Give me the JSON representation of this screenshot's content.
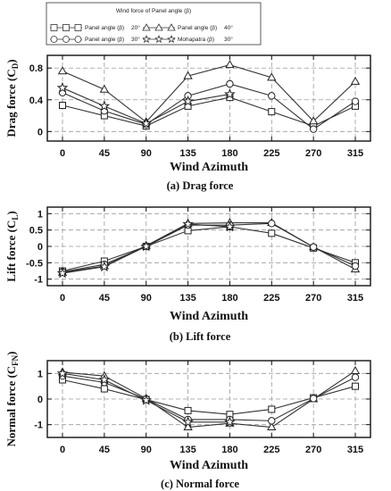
{
  "legend": {
    "title": "Wind force of Panel angle (β)",
    "entries": [
      {
        "name": "Panel angle (β)",
        "angle": "20°",
        "marker": "square"
      },
      {
        "name": "Panel angle (β)",
        "angle": "40°",
        "marker": "triangle"
      },
      {
        "name": "Panel angle (β)",
        "angle": "30°",
        "marker": "circle"
      },
      {
        "name": "Mohapatra",
        "angle": "(β)",
        "extra": "30°",
        "marker": "star"
      }
    ]
  },
  "chart_data": [
    {
      "type": "line",
      "caption": "(a) Drag force",
      "ylabel": "Drag force (C",
      "ylabel_sub": "D",
      "xlabel": "Wind Azimuth",
      "x": [
        0,
        45,
        90,
        135,
        180,
        225,
        270,
        315
      ],
      "yticks": [
        "0",
        "0.4",
        "0.8"
      ],
      "ytick_values": [
        0,
        0.4,
        0.8
      ],
      "ylim": [
        -0.12,
        0.96
      ],
      "grid": true,
      "series": [
        {
          "marker": "square",
          "values": [
            0.33,
            0.2,
            0.07,
            0.32,
            0.43,
            0.25,
            0.07,
            0.32
          ]
        },
        {
          "marker": "triangle",
          "values": [
            0.76,
            0.53,
            0.12,
            0.7,
            0.84,
            0.68,
            0.13,
            0.63
          ]
        },
        {
          "marker": "circle",
          "values": [
            0.49,
            0.26,
            0.09,
            0.45,
            0.6,
            0.45,
            0.03,
            0.38
          ]
        },
        {
          "marker": "star",
          "values": [
            0.55,
            0.32,
            0.1,
            0.38,
            0.47,
            null,
            null,
            null
          ]
        }
      ]
    },
    {
      "type": "line",
      "caption": "(b) Lift force",
      "ylabel": "Lift force (C",
      "ylabel_sub": "L",
      "xlabel": "Wind Azimuth",
      "x": [
        0,
        45,
        90,
        135,
        180,
        225,
        270,
        315
      ],
      "yticks": [
        "-1",
        "-0.5",
        "0",
        "0.5",
        "1"
      ],
      "ytick_values": [
        -1,
        -0.5,
        0,
        0.5,
        1
      ],
      "ylim": [
        -1.2,
        1.2
      ],
      "grid": true,
      "series": [
        {
          "marker": "square",
          "values": [
            -0.75,
            -0.45,
            0.0,
            0.48,
            0.6,
            0.4,
            -0.05,
            -0.5
          ]
        },
        {
          "marker": "triangle",
          "values": [
            -0.8,
            -0.6,
            0.02,
            0.7,
            0.72,
            0.72,
            -0.02,
            -0.7
          ]
        },
        {
          "marker": "circle",
          "values": [
            -0.78,
            -0.55,
            0.0,
            0.65,
            0.65,
            0.7,
            -0.02,
            -0.6
          ]
        },
        {
          "marker": "star",
          "values": [
            -0.82,
            -0.62,
            0.0,
            0.68,
            0.6,
            null,
            null,
            null
          ]
        }
      ]
    },
    {
      "type": "line",
      "caption": "(c) Normal force",
      "ylabel": "Normal force (C",
      "ylabel_sub": "FN",
      "xlabel": "Wind Azimuth",
      "x": [
        0,
        45,
        90,
        135,
        180,
        225,
        270,
        315
      ],
      "yticks": [
        "-1",
        "0",
        "1"
      ],
      "ytick_values": [
        -1,
        0,
        1
      ],
      "ylim": [
        -1.5,
        1.5
      ],
      "grid": true,
      "series": [
        {
          "marker": "square",
          "values": [
            0.75,
            0.4,
            -0.02,
            -0.45,
            -0.6,
            -0.4,
            0.05,
            0.5
          ]
        },
        {
          "marker": "triangle",
          "values": [
            1.05,
            0.9,
            0.02,
            -1.1,
            -0.95,
            -1.1,
            0.0,
            1.1
          ]
        },
        {
          "marker": "circle",
          "values": [
            0.9,
            0.65,
            0.0,
            -0.8,
            -0.8,
            -0.85,
            0.02,
            0.85
          ]
        },
        {
          "marker": "star",
          "values": [
            1.0,
            0.75,
            -0.05,
            -0.9,
            -0.9,
            null,
            null,
            null
          ]
        }
      ]
    }
  ]
}
